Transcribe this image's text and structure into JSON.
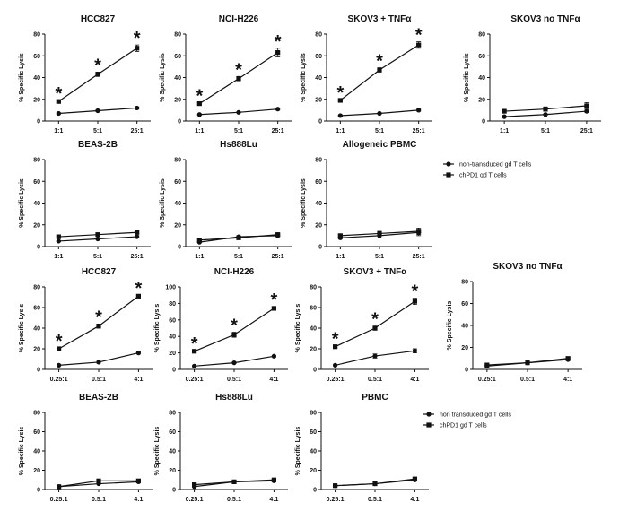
{
  "chart_data": [
    {
      "id": "p1",
      "type": "line",
      "title": "HCC827",
      "xlabel": "",
      "ylabel": "% Specific Lysis",
      "categories": [
        "1:1",
        "5:1",
        "25:1"
      ],
      "ylim": [
        0,
        80
      ],
      "yticks": [
        0,
        20,
        40,
        60,
        80
      ],
      "series": [
        {
          "name": "non-transduced gd T cells",
          "marker": "circle",
          "values": [
            7,
            9.5,
            12
          ],
          "err": [
            0.5,
            1,
            1
          ]
        },
        {
          "name": "chPD1 gd T cells",
          "marker": "square",
          "values": [
            18,
            43,
            67
          ],
          "err": [
            1,
            2,
            3
          ]
        }
      ],
      "significant": [
        true,
        true,
        true
      ]
    },
    {
      "id": "p2",
      "type": "line",
      "title": "NCI-H226",
      "xlabel": "",
      "ylabel": "% Specific Lysis",
      "categories": [
        "1:1",
        "5:1",
        "25:1"
      ],
      "ylim": [
        0,
        80
      ],
      "yticks": [
        0,
        20,
        40,
        60,
        80
      ],
      "series": [
        {
          "name": "non-transduced gd T cells",
          "marker": "circle",
          "values": [
            6,
            8,
            11
          ],
          "err": [
            0.5,
            0.5,
            1
          ]
        },
        {
          "name": "chPD1 gd T cells",
          "marker": "square",
          "values": [
            16,
            39,
            63
          ],
          "err": [
            1,
            2,
            4
          ]
        }
      ],
      "significant": [
        true,
        true,
        true
      ]
    },
    {
      "id": "p3",
      "type": "line",
      "title": "SKOV3 + TNFα",
      "xlabel": "",
      "ylabel": "% Specific Lysis",
      "categories": [
        "1:1",
        "5:1",
        "25:1"
      ],
      "ylim": [
        0,
        80
      ],
      "yticks": [
        0,
        20,
        40,
        60,
        80
      ],
      "series": [
        {
          "name": "non-transduced gd T cells",
          "marker": "circle",
          "values": [
            5,
            7,
            10
          ],
          "err": [
            0.5,
            0.5,
            1
          ]
        },
        {
          "name": "chPD1 gd T cells",
          "marker": "square",
          "values": [
            19,
            47,
            70
          ],
          "err": [
            1,
            2,
            3
          ]
        }
      ],
      "significant": [
        true,
        true,
        true
      ]
    },
    {
      "id": "p4",
      "type": "line",
      "title": "SKOV3 no TNFα",
      "xlabel": "",
      "ylabel": "% Specific Lysis",
      "categories": [
        "1:1",
        "5:1",
        "25:1"
      ],
      "ylim": [
        0,
        80
      ],
      "yticks": [
        0,
        20,
        40,
        60,
        80
      ],
      "series": [
        {
          "name": "non-transduced gd T cells",
          "marker": "circle",
          "values": [
            4,
            6,
            9
          ],
          "err": [
            0.5,
            0.5,
            1
          ]
        },
        {
          "name": "chPD1 gd T cells",
          "marker": "square",
          "values": [
            9,
            11,
            14
          ],
          "err": [
            1,
            2,
            3
          ]
        }
      ],
      "significant": [
        false,
        false,
        false
      ]
    },
    {
      "id": "p5",
      "type": "line",
      "title": "BEAS-2B",
      "xlabel": "",
      "ylabel": "% Specific Lysis",
      "categories": [
        "1:1",
        "5:1",
        "25:1"
      ],
      "ylim": [
        0,
        80
      ],
      "yticks": [
        0,
        20,
        40,
        60,
        80
      ],
      "series": [
        {
          "name": "non-transduced gd T cells",
          "marker": "circle",
          "values": [
            5,
            7,
            9
          ],
          "err": [
            0.5,
            0.5,
            1
          ]
        },
        {
          "name": "chPD1 gd T cells",
          "marker": "square",
          "values": [
            9,
            11,
            13
          ],
          "err": [
            1,
            1,
            1.5
          ]
        }
      ],
      "significant": [
        false,
        false,
        false
      ]
    },
    {
      "id": "p6",
      "type": "line",
      "title": "Hs888Lu",
      "xlabel": "",
      "ylabel": "% Specific Lysis",
      "categories": [
        "1:1",
        "5:1",
        "25:1"
      ],
      "ylim": [
        0,
        80
      ],
      "yticks": [
        0,
        20,
        40,
        60,
        80
      ],
      "series": [
        {
          "name": "non-transduced gd T cells",
          "marker": "circle",
          "values": [
            4,
            9,
            10
          ],
          "err": [
            0.5,
            1,
            1
          ]
        },
        {
          "name": "chPD1 gd T cells",
          "marker": "square",
          "values": [
            6,
            8,
            11
          ],
          "err": [
            0.5,
            1,
            1
          ]
        }
      ],
      "significant": [
        false,
        false,
        false
      ]
    },
    {
      "id": "p7",
      "type": "line",
      "title": "Allogeneic PBMC",
      "xlabel": "",
      "ylabel": "% Specific Lysis",
      "categories": [
        "1:1",
        "5:1",
        "25:1"
      ],
      "ylim": [
        0,
        80
      ],
      "yticks": [
        0,
        20,
        40,
        60,
        80
      ],
      "series": [
        {
          "name": "non-transduced gd T cells",
          "marker": "circle",
          "values": [
            8,
            10,
            13
          ],
          "err": [
            1,
            2,
            3
          ]
        },
        {
          "name": "chPD1 gd T cells",
          "marker": "square",
          "values": [
            10,
            12,
            14
          ],
          "err": [
            1,
            2,
            3
          ]
        }
      ],
      "significant": [
        false,
        false,
        false
      ]
    },
    {
      "id": "p8",
      "type": "line",
      "title": "HCC827",
      "xlabel": "",
      "ylabel": "% Specific Lysis",
      "categories": [
        "0.25:1",
        "0.5:1",
        "4:1"
      ],
      "ylim": [
        0,
        80
      ],
      "yticks": [
        0,
        20,
        40,
        60,
        80
      ],
      "series": [
        {
          "name": "non transduced gd T cells",
          "marker": "circle",
          "values": [
            4,
            7,
            16
          ],
          "err": [
            0.5,
            1,
            1
          ]
        },
        {
          "name": "chPD1 gd T cells",
          "marker": "square",
          "values": [
            20,
            42,
            71
          ],
          "err": [
            1,
            2,
            1
          ]
        }
      ],
      "significant": [
        true,
        true,
        true
      ]
    },
    {
      "id": "p9",
      "type": "line",
      "title": "NCI-H226",
      "xlabel": "",
      "ylabel": "% Specific Lysis",
      "categories": [
        "0.25:1",
        "0.5:1",
        "4:1"
      ],
      "ylim": [
        0,
        100
      ],
      "yticks": [
        0,
        20,
        40,
        60,
        80,
        100
      ],
      "series": [
        {
          "name": "non transduced gd T cells",
          "marker": "circle",
          "values": [
            4,
            8,
            16
          ],
          "err": [
            0.5,
            1,
            1
          ]
        },
        {
          "name": "chPD1 gd T cells",
          "marker": "square",
          "values": [
            22,
            42,
            74
          ],
          "err": [
            1,
            3,
            2
          ]
        }
      ],
      "significant": [
        true,
        true,
        true
      ]
    },
    {
      "id": "p10",
      "type": "line",
      "title": "SKOV3 + TNFα",
      "xlabel": "",
      "ylabel": "% Specific Lysis",
      "categories": [
        "0.25:1",
        "0.5:1",
        "4:1"
      ],
      "ylim": [
        0,
        80
      ],
      "yticks": [
        0,
        20,
        40,
        60,
        80
      ],
      "series": [
        {
          "name": "non transduced gd T cells",
          "marker": "circle",
          "values": [
            4,
            13,
            18
          ],
          "err": [
            0.5,
            2,
            2
          ]
        },
        {
          "name": "chPD1 gd T cells",
          "marker": "square",
          "values": [
            22,
            40,
            66
          ],
          "err": [
            1,
            2,
            3
          ]
        }
      ],
      "significant": [
        true,
        true,
        true
      ]
    },
    {
      "id": "p11",
      "type": "line",
      "title": "SKOV3 no TNFα",
      "xlabel": "",
      "ylabel": "% Specific Lysis",
      "categories": [
        "0.25:1",
        "0.5:1",
        "4:1"
      ],
      "ylim": [
        0,
        80
      ],
      "yticks": [
        0,
        20,
        40,
        60,
        80
      ],
      "series": [
        {
          "name": "non transduced gd T cells",
          "marker": "circle",
          "values": [
            3,
            6,
            9
          ],
          "err": [
            0.5,
            0.5,
            1
          ]
        },
        {
          "name": "chPD1 gd T cells",
          "marker": "square",
          "values": [
            4,
            6,
            10
          ],
          "err": [
            0.5,
            0.5,
            1
          ]
        }
      ],
      "significant": [
        false,
        false,
        false
      ]
    },
    {
      "id": "p12",
      "type": "line",
      "title": "BEAS-2B",
      "xlabel": "",
      "ylabel": "% Specific Lysis",
      "categories": [
        "0.25:1",
        "0.5:1",
        "4:1"
      ],
      "ylim": [
        0,
        80
      ],
      "yticks": [
        0,
        20,
        40,
        60,
        80
      ],
      "series": [
        {
          "name": "non transduced gd T cells",
          "marker": "circle",
          "values": [
            3,
            6,
            8
          ],
          "err": [
            0.5,
            0.5,
            1
          ]
        },
        {
          "name": "chPD1 gd T cells",
          "marker": "square",
          "values": [
            3,
            9,
            9
          ],
          "err": [
            0.5,
            1,
            1
          ]
        }
      ],
      "significant": [
        false,
        false,
        false
      ]
    },
    {
      "id": "p13",
      "type": "line",
      "title": "Hs888Lu",
      "xlabel": "",
      "ylabel": "% Specific Lysis",
      "categories": [
        "0.25:1",
        "0.5:1",
        "4:1"
      ],
      "ylim": [
        0,
        80
      ],
      "yticks": [
        0,
        20,
        40,
        60,
        80
      ],
      "series": [
        {
          "name": "non transduced gd T cells",
          "marker": "circle",
          "values": [
            3,
            8,
            9
          ],
          "err": [
            0.5,
            1,
            1
          ]
        },
        {
          "name": "chPD1 gd T cells",
          "marker": "square",
          "values": [
            5,
            8,
            10
          ],
          "err": [
            0.5,
            1,
            1
          ]
        }
      ],
      "significant": [
        false,
        false,
        false
      ]
    },
    {
      "id": "p14",
      "type": "line",
      "title": "PBMC",
      "xlabel": "",
      "ylabel": "% Specific Lysis",
      "categories": [
        "0.25:1",
        "0.5:1",
        "4:1"
      ],
      "ylim": [
        0,
        80
      ],
      "yticks": [
        0,
        20,
        40,
        60,
        80
      ],
      "series": [
        {
          "name": "non transduced gd T cells",
          "marker": "circle",
          "values": [
            4,
            6,
            10
          ],
          "err": [
            0.5,
            0.5,
            1
          ]
        },
        {
          "name": "chPD1 gd T cells",
          "marker": "square",
          "values": [
            4,
            6,
            11
          ],
          "err": [
            0.5,
            0.5,
            1
          ]
        }
      ],
      "significant": [
        false,
        false,
        false
      ]
    }
  ],
  "legends": [
    {
      "id": "leg1",
      "entries": [
        {
          "marker": "circle",
          "label": "non-transduced gd T cells"
        },
        {
          "marker": "square",
          "label": "chPD1 gd T cells"
        }
      ]
    },
    {
      "id": "leg2",
      "entries": [
        {
          "marker": "circle",
          "label": "non transduced gd T cells"
        },
        {
          "marker": "square",
          "label": "chPD1 gd T cells"
        }
      ]
    }
  ],
  "significance_symbol": "*"
}
